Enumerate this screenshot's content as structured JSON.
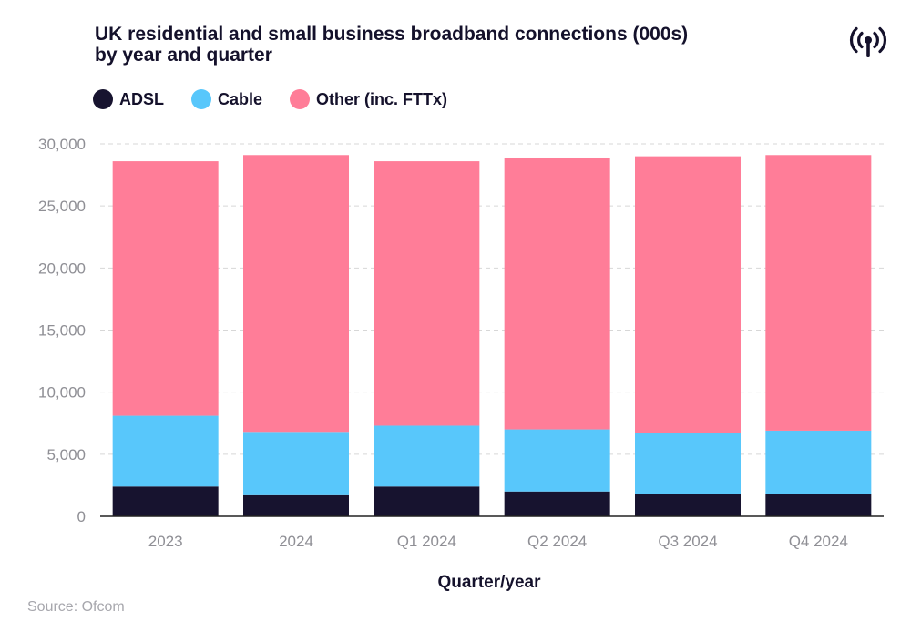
{
  "title_lines": [
    "UK residential and small business broadband connections (000s)",
    "by year and quarter"
  ],
  "source": "Source: Ofcom",
  "icon": "signal-broadcast-icon",
  "colors": {
    "adsl": "#17132f",
    "cable": "#58c7fb",
    "other": "#ff7d98",
    "grid": "#d7d7d7",
    "axis": "#222222",
    "tick_text": "#8f8f95"
  },
  "legend": [
    {
      "label": "ADSL",
      "series": "adsl"
    },
    {
      "label": "Cable",
      "series": "cable"
    },
    {
      "label": "Other (inc. FTTx)",
      "series": "other"
    }
  ],
  "chart_data": {
    "type": "bar",
    "stacked": true,
    "title": "UK residential and small business broadband connections (000s) by year and quarter",
    "xlabel": "Quarter/year",
    "ylabel": "",
    "ylim": [
      0,
      30000
    ],
    "yticks": [
      0,
      5000,
      10000,
      15000,
      20000,
      25000,
      30000
    ],
    "ytick_labels": [
      "0",
      "5,000",
      "10,000",
      "15,000",
      "20,000",
      "25,000",
      "30,000"
    ],
    "grid": true,
    "legend_position": "top-left",
    "categories": [
      "2023",
      "2024",
      "Q1 2024",
      "Q2 2024",
      "Q3 2024",
      "Q4 2024"
    ],
    "series": [
      {
        "key": "adsl",
        "name": "ADSL",
        "values": [
          2400,
          1700,
          2400,
          2000,
          1800,
          1800
        ]
      },
      {
        "key": "cable",
        "name": "Cable",
        "values": [
          5700,
          5100,
          4900,
          5000,
          4900,
          5100
        ]
      },
      {
        "key": "other",
        "name": "Other (inc. FTTx)",
        "values": [
          20500,
          22300,
          21300,
          21900,
          22300,
          22200
        ]
      }
    ]
  }
}
